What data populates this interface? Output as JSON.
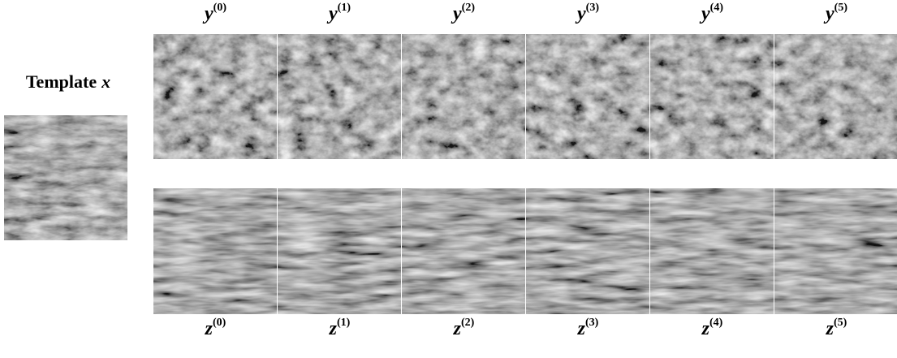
{
  "template_label": {
    "text": "Template",
    "symbol": "x"
  },
  "top_labels": [
    {
      "symbol": "y",
      "superscript": "(0)"
    },
    {
      "symbol": "y",
      "superscript": "(1)"
    },
    {
      "symbol": "y",
      "superscript": "(2)"
    },
    {
      "symbol": "y",
      "superscript": "(3)"
    },
    {
      "symbol": "y",
      "superscript": "(4)"
    },
    {
      "symbol": "y",
      "superscript": "(5)"
    }
  ],
  "bottom_labels": [
    {
      "symbol": "z",
      "superscript": "(0)"
    },
    {
      "symbol": "z",
      "superscript": "(1)"
    },
    {
      "symbol": "z",
      "superscript": "(2)"
    },
    {
      "symbol": "z",
      "superscript": "(3)"
    },
    {
      "symbol": "z",
      "superscript": "(4)"
    },
    {
      "symbol": "z",
      "superscript": "(5)"
    }
  ]
}
